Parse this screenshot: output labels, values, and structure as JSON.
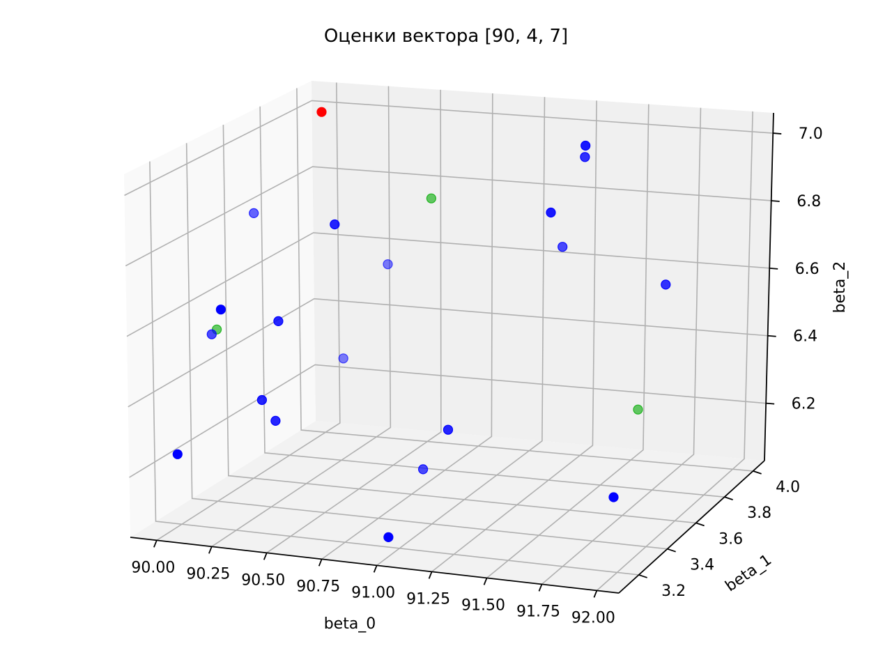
{
  "chart_data": {
    "type": "scatter",
    "title": "Оценки вектора [90, 4, 7]",
    "xlabel": "beta_0",
    "ylabel": "beta_1",
    "zlabel": "beta_2",
    "x_ticks": [
      "90.00",
      "90.25",
      "90.50",
      "90.75",
      "91.00",
      "91.25",
      "91.50",
      "91.75",
      "92.00"
    ],
    "y_ticks": [
      "3.2",
      "3.4",
      "3.6",
      "3.8",
      "4.0"
    ],
    "z_ticks": [
      "6.2",
      "6.4",
      "6.6",
      "6.8",
      "7.0"
    ],
    "xlim": [
      89.88,
      92.1
    ],
    "ylim": [
      3.06,
      4.08
    ],
    "zlim": [
      6.03,
      7.06
    ],
    "grid": true,
    "colors": {
      "estimate": "#0000ff",
      "highlight": "#00aa00",
      "true_value": "#ff0000"
    },
    "points": [
      {
        "x": 90.0,
        "y": 4.0,
        "z": 7.0,
        "color": "true_value",
        "alpha": 1.0
      },
      {
        "x": 90.05,
        "y": 3.56,
        "z": 6.85,
        "color": "estimate",
        "alpha": 0.6
      },
      {
        "x": 90.35,
        "y": 3.66,
        "z": 6.8,
        "color": "estimate",
        "alpha": 0.85
      },
      {
        "x": 90.7,
        "y": 3.8,
        "z": 6.85,
        "color": "highlight",
        "alpha": 0.6
      },
      {
        "x": 90.65,
        "y": 3.6,
        "z": 6.72,
        "color": "estimate",
        "alpha": 0.5
      },
      {
        "x": 90.0,
        "y": 3.43,
        "z": 6.6,
        "color": "estimate",
        "alpha": 1.0
      },
      {
        "x": 89.92,
        "y": 3.5,
        "z": 6.51,
        "color": "highlight",
        "alpha": 0.6
      },
      {
        "x": 89.93,
        "y": 3.46,
        "z": 6.51,
        "color": "estimate",
        "alpha": 0.7
      },
      {
        "x": 90.16,
        "y": 3.56,
        "z": 6.53,
        "color": "estimate",
        "alpha": 0.85
      },
      {
        "x": 90.27,
        "y": 3.33,
        "z": 6.38,
        "color": "estimate",
        "alpha": 0.85
      },
      {
        "x": 90.35,
        "y": 3.7,
        "z": 6.38,
        "color": "estimate",
        "alpha": 0.5
      },
      {
        "x": 89.9,
        "y": 3.3,
        "z": 6.2,
        "color": "estimate",
        "alpha": 1.0
      },
      {
        "x": 90.25,
        "y": 3.43,
        "z": 6.28,
        "color": "estimate",
        "alpha": 0.85
      },
      {
        "x": 91.35,
        "y": 3.93,
        "z": 7.0,
        "color": "estimate",
        "alpha": 0.9
      },
      {
        "x": 91.3,
        "y": 3.99,
        "z": 6.94,
        "color": "estimate",
        "alpha": 0.8
      },
      {
        "x": 91.2,
        "y": 3.9,
        "z": 6.8,
        "color": "estimate",
        "alpha": 0.9
      },
      {
        "x": 91.9,
        "y": 3.7,
        "z": 6.7,
        "color": "estimate",
        "alpha": 0.8
      },
      {
        "x": 91.2,
        "y": 3.97,
        "z": 6.67,
        "color": "estimate",
        "alpha": 0.7
      },
      {
        "x": 91.95,
        "y": 3.43,
        "z": 6.43,
        "color": "highlight",
        "alpha": 0.6
      },
      {
        "x": 91.9,
        "y": 3.33,
        "z": 6.2,
        "color": "estimate",
        "alpha": 1.0
      },
      {
        "x": 90.8,
        "y": 3.76,
        "z": 6.17,
        "color": "estimate",
        "alpha": 0.85
      },
      {
        "x": 90.75,
        "y": 3.67,
        "z": 6.08,
        "color": "estimate",
        "alpha": 0.7
      },
      {
        "x": 90.95,
        "y": 3.2,
        "z": 6.06,
        "color": "estimate",
        "alpha": 1.0
      }
    ]
  }
}
